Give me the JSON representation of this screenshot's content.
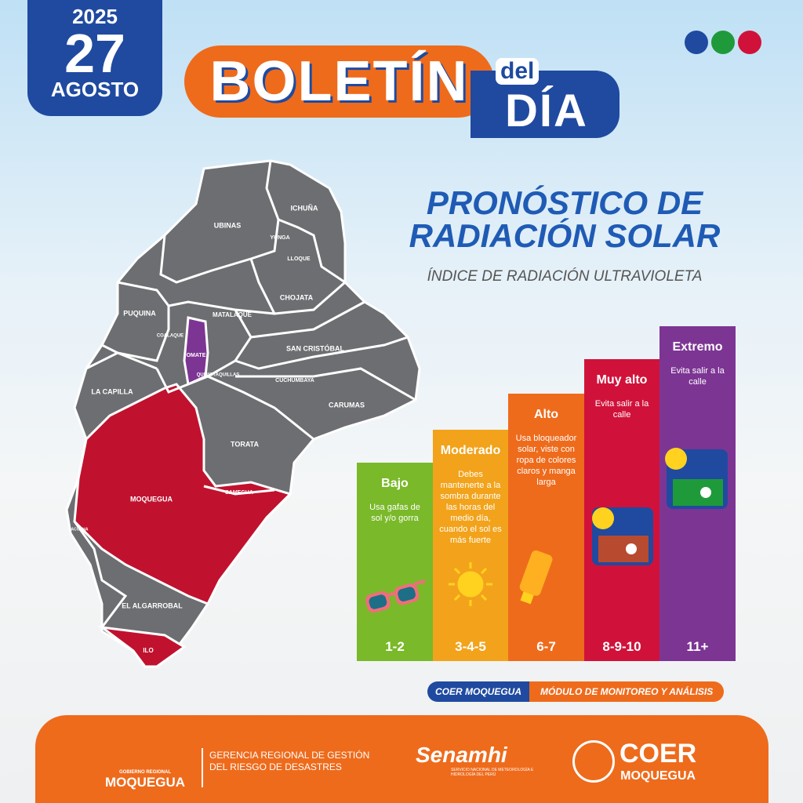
{
  "date": {
    "year": "2025",
    "day": "27",
    "month": "AGOSTO"
  },
  "header": {
    "title": "BOLETÍN",
    "del": "del",
    "dia": "DÍA"
  },
  "forecast": {
    "title_line1": "PRONÓSTICO DE",
    "title_line2": "RADIACIÓN SOLAR",
    "subtitle": "ÍNDICE DE RADIACIÓN ULTRAVIOLETA"
  },
  "map": {
    "districts": [
      {
        "name": "UBINAS",
        "color": "#6d6e71"
      },
      {
        "name": "ICHUÑA",
        "color": "#6d6e71"
      },
      {
        "name": "YUNGA",
        "color": "#6d6e71"
      },
      {
        "name": "LLOQUE",
        "color": "#6d6e71"
      },
      {
        "name": "CHOJATA",
        "color": "#6d6e71"
      },
      {
        "name": "MATALAQUE",
        "color": "#6d6e71"
      },
      {
        "name": "PUQUINA",
        "color": "#6d6e71"
      },
      {
        "name": "COALAQUE",
        "color": "#6d6e71"
      },
      {
        "name": "OMATE",
        "color": "#7d3594"
      },
      {
        "name": "QUINISTAQUILLAS",
        "color": "#6d6e71"
      },
      {
        "name": "SAN CRISTÓBAL",
        "color": "#6d6e71"
      },
      {
        "name": "CUCHUMBAYA",
        "color": "#6d6e71"
      },
      {
        "name": "CARUMAS",
        "color": "#6d6e71"
      },
      {
        "name": "LA CAPILLA",
        "color": "#6d6e71"
      },
      {
        "name": "TORATA",
        "color": "#6d6e71"
      },
      {
        "name": "SAMEGUA",
        "color": "#6d6e71"
      },
      {
        "name": "MOQUEGUA",
        "color": "#c0122e"
      },
      {
        "name": "PACOCHA",
        "color": "#6d6e71"
      },
      {
        "name": "EL ALGARROBAL",
        "color": "#6d6e71"
      },
      {
        "name": "ILO",
        "color": "#c0122e"
      }
    ]
  },
  "levels": [
    {
      "name": "Bajo",
      "text": "Usa gafas de sol y/o gorra",
      "range": "1-2",
      "color": "#7ab929"
    },
    {
      "name": "Moderado",
      "text": "Debes mantenerte a la sombra durante las horas del medio día, cuando el sol es más fuerte",
      "range": "3-4-5",
      "color": "#f2a31b"
    },
    {
      "name": "Alto",
      "text": "Usa bloqueador solar, viste con ropa de colores claros y manga larga",
      "range": "6-7",
      "color": "#ee6b1c"
    },
    {
      "name": "Muy alto",
      "text": "Evita salir a la calle",
      "range": "8-9-10",
      "color": "#d0123a"
    },
    {
      "name": "Extremo",
      "text": "Evita salir a la calle",
      "range": "11+",
      "color": "#7d3594"
    }
  ],
  "tag": {
    "left": "COER MOQUEGUA",
    "right": "MÓDULO DE MONITOREO Y ANÁLISIS"
  },
  "footer": {
    "gore_small": "GOBIERNO REGIONAL",
    "gore": "MOQUEGUA",
    "gerencia_line1": "GERENCIA REGIONAL DE GESTIÓN",
    "gerencia_line2": "DEL RIESGO DE DESASTRES",
    "senamhi": "Senamhi",
    "senamhi_sub": "SERVICIO NACIONAL DE METEOROLOGÍA E HIDROLOGÍA DEL PERÚ",
    "coer": "COER",
    "coer_sub": "MOQUEGUA"
  }
}
